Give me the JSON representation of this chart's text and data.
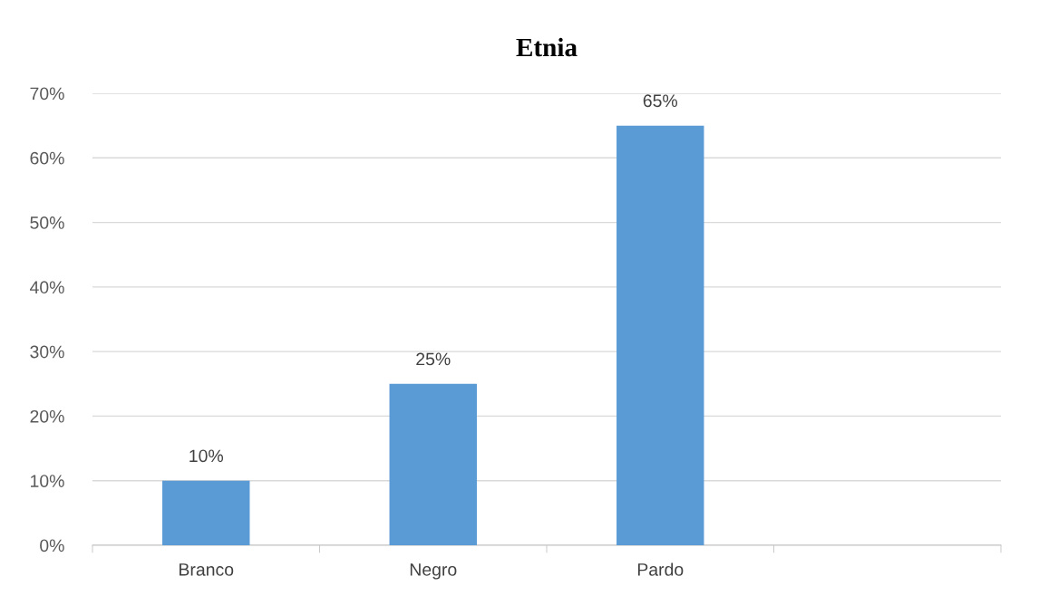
{
  "chart_data": {
    "type": "bar",
    "title": "Etnia",
    "categories": [
      "Branco",
      "Negro",
      "Pardo",
      null
    ],
    "values": [
      10,
      25,
      65,
      null
    ],
    "value_labels": [
      "10%",
      "25%",
      "65%",
      null
    ],
    "color": "#5b9bd5",
    "ylim": [
      0,
      70
    ],
    "yticks": [
      {
        "value": 0,
        "label": "0%"
      },
      {
        "value": 10,
        "label": "10%"
      },
      {
        "value": 20,
        "label": "20%"
      },
      {
        "value": 30,
        "label": "30%"
      },
      {
        "value": 40,
        "label": "40%"
      },
      {
        "value": 50,
        "label": "50%"
      },
      {
        "value": 60,
        "label": "60%"
      },
      {
        "value": 70,
        "label": "70%"
      }
    ],
    "grid": "y"
  }
}
